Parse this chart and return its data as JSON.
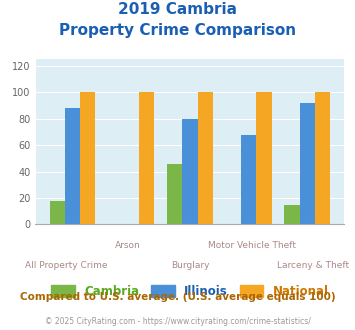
{
  "title_line1": "2019 Cambria",
  "title_line2": "Property Crime Comparison",
  "title_color": "#1a5fb4",
  "categories": [
    "All Property Crime",
    "Arson",
    "Burglary",
    "Motor Vehicle Theft",
    "Larceny & Theft"
  ],
  "cambria": [
    18,
    0,
    46,
    0,
    15
  ],
  "illinois": [
    88,
    0,
    80,
    68,
    92
  ],
  "national": [
    100,
    100,
    100,
    100,
    100
  ],
  "bar_colors": {
    "cambria": "#7ab648",
    "illinois": "#4a90d9",
    "national": "#f5a623"
  },
  "ylim": [
    0,
    125
  ],
  "yticks": [
    0,
    20,
    40,
    60,
    80,
    100,
    120
  ],
  "x_label_top": [
    "",
    "Arson",
    "",
    "Motor Vehicle Theft",
    ""
  ],
  "x_label_bottom": [
    "All Property Crime",
    "",
    "Burglary",
    "",
    "Larceny & Theft"
  ],
  "legend_labels": [
    "Cambria",
    "Illinois",
    "National"
  ],
  "legend_label_colors": [
    "#5aaa20",
    "#1a5fb4",
    "#cc7700"
  ],
  "footer_text": "Compared to U.S. average. (U.S. average equals 100)",
  "footer_color": "#aa6600",
  "copyright_text": "© 2025 CityRating.com - https://www.cityrating.com/crime-statistics/",
  "copyright_color": "#999999",
  "bg_color": "#ffffff",
  "plot_bg_color": "#ddeef4",
  "x_label_top_color": "#aa8888",
  "x_label_bottom_color": "#aa8888"
}
